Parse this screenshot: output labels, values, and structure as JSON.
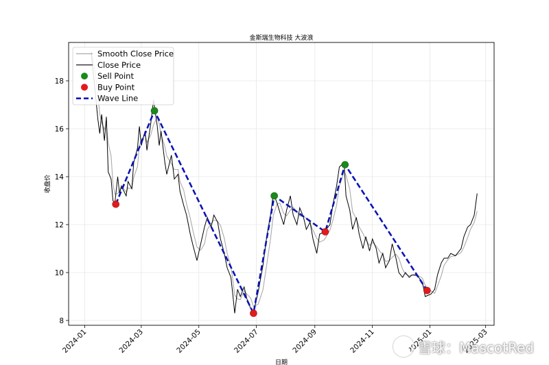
{
  "chart_data": {
    "type": "line",
    "title": "金斯瑞生物科技  大波浪",
    "xlabel": "日期",
    "ylabel": "收盘价",
    "ylim": [
      7.8,
      19.6
    ],
    "xlim": [
      "2023-12-15",
      "2025-03-10"
    ],
    "x_ticks": [
      "2024-01",
      "2024-03",
      "2024-05",
      "2024-07",
      "2024-09",
      "2024-11",
      "2025-01",
      "2025-03"
    ],
    "y_ticks": [
      8,
      10,
      12,
      14,
      16,
      18
    ],
    "grid": true,
    "legend": {
      "placement": "top-left",
      "entries": [
        {
          "label": "Smooth Close Price",
          "kind": "line",
          "color": "#aaaaaa"
        },
        {
          "label": "Close Price",
          "kind": "line",
          "color": "#000000"
        },
        {
          "label": "Sell Point",
          "kind": "marker",
          "color": "#1a8a1a"
        },
        {
          "label": "Buy Point",
          "kind": "marker",
          "color": "#e31a1c"
        },
        {
          "label": "Wave Line",
          "kind": "dashed",
          "color": "#0a14b4"
        }
      ]
    },
    "close_price": [
      [
        "2024-01-08",
        19.2
      ],
      [
        "2024-01-10",
        18.4
      ],
      [
        "2024-01-12",
        17.6
      ],
      [
        "2024-01-15",
        16.4
      ],
      [
        "2024-01-17",
        15.8
      ],
      [
        "2024-01-19",
        16.6
      ],
      [
        "2024-01-22",
        15.5
      ],
      [
        "2024-01-24",
        16.5
      ],
      [
        "2024-01-26",
        14.2
      ],
      [
        "2024-01-29",
        13.9
      ],
      [
        "2024-01-31",
        13.0
      ],
      [
        "2024-02-02",
        12.9
      ],
      [
        "2024-02-05",
        14.0
      ],
      [
        "2024-02-07",
        13.3
      ],
      [
        "2024-02-09",
        13.6
      ],
      [
        "2024-02-14",
        13.2
      ],
      [
        "2024-02-16",
        13.8
      ],
      [
        "2024-02-20",
        13.5
      ],
      [
        "2024-02-22",
        14.6
      ],
      [
        "2024-02-26",
        15.2
      ],
      [
        "2024-02-28",
        16.1
      ],
      [
        "2024-03-01",
        15.3
      ],
      [
        "2024-03-05",
        15.9
      ],
      [
        "2024-03-07",
        15.1
      ],
      [
        "2024-03-11",
        16.2
      ],
      [
        "2024-03-14",
        17.2
      ],
      [
        "2024-03-18",
        16.1
      ],
      [
        "2024-03-20",
        15.3
      ],
      [
        "2024-03-22",
        15.9
      ],
      [
        "2024-03-26",
        14.6
      ],
      [
        "2024-03-28",
        14.1
      ],
      [
        "2024-04-02",
        14.9
      ],
      [
        "2024-04-05",
        13.9
      ],
      [
        "2024-04-09",
        14.1
      ],
      [
        "2024-04-11",
        13.4
      ],
      [
        "2024-04-15",
        12.8
      ],
      [
        "2024-04-18",
        12.4
      ],
      [
        "2024-04-22",
        11.6
      ],
      [
        "2024-04-25",
        11.1
      ],
      [
        "2024-04-29",
        10.5
      ],
      [
        "2024-05-03",
        11.2
      ],
      [
        "2024-05-07",
        11.9
      ],
      [
        "2024-05-10",
        12.3
      ],
      [
        "2024-05-14",
        11.9
      ],
      [
        "2024-05-17",
        12.4
      ],
      [
        "2024-05-21",
        12.1
      ],
      [
        "2024-05-24",
        11.4
      ],
      [
        "2024-05-28",
        10.8
      ],
      [
        "2024-05-31",
        10.2
      ],
      [
        "2024-06-04",
        9.8
      ],
      [
        "2024-06-06",
        9.1
      ],
      [
        "2024-06-08",
        8.3
      ],
      [
        "2024-06-11",
        9.3
      ],
      [
        "2024-06-14",
        9.0
      ],
      [
        "2024-06-18",
        9.4
      ],
      [
        "2024-06-21",
        8.9
      ],
      [
        "2024-06-25",
        8.5
      ],
      [
        "2024-06-28",
        8.35
      ],
      [
        "2024-07-03",
        9.2
      ],
      [
        "2024-07-08",
        10.3
      ],
      [
        "2024-07-12",
        11.5
      ],
      [
        "2024-07-16",
        12.4
      ],
      [
        "2024-07-19",
        13.3
      ],
      [
        "2024-07-23",
        12.9
      ],
      [
        "2024-07-26",
        12.5
      ],
      [
        "2024-07-30",
        12.0
      ],
      [
        "2024-08-02",
        12.6
      ],
      [
        "2024-08-06",
        13.2
      ],
      [
        "2024-08-09",
        12.4
      ],
      [
        "2024-08-13",
        12.0
      ],
      [
        "2024-08-16",
        12.7
      ],
      [
        "2024-08-20",
        12.3
      ],
      [
        "2024-08-23",
        11.8
      ],
      [
        "2024-08-27",
        12.1
      ],
      [
        "2024-08-30",
        11.4
      ],
      [
        "2024-09-03",
        10.8
      ],
      [
        "2024-09-06",
        11.6
      ],
      [
        "2024-09-11",
        11.7
      ],
      [
        "2024-09-17",
        12.0
      ],
      [
        "2024-09-20",
        12.8
      ],
      [
        "2024-09-24",
        13.6
      ],
      [
        "2024-09-27",
        14.4
      ],
      [
        "2024-10-02",
        14.6
      ],
      [
        "2024-10-04",
        13.2
      ],
      [
        "2024-10-08",
        12.6
      ],
      [
        "2024-10-11",
        11.8
      ],
      [
        "2024-10-15",
        12.3
      ],
      [
        "2024-10-18",
        11.6
      ],
      [
        "2024-10-22",
        11.0
      ],
      [
        "2024-10-25",
        11.5
      ],
      [
        "2024-10-29",
        10.9
      ],
      [
        "2024-11-01",
        11.4
      ],
      [
        "2024-11-05",
        11.0
      ],
      [
        "2024-11-08",
        10.4
      ],
      [
        "2024-11-12",
        10.8
      ],
      [
        "2024-11-15",
        10.2
      ],
      [
        "2024-11-19",
        10.5
      ],
      [
        "2024-11-22",
        11.2
      ],
      [
        "2024-11-26",
        10.6
      ],
      [
        "2024-11-29",
        10.0
      ],
      [
        "2024-12-03",
        9.8
      ],
      [
        "2024-12-06",
        10.0
      ],
      [
        "2024-12-10",
        9.8
      ],
      [
        "2024-12-13",
        9.9
      ],
      [
        "2024-12-17",
        9.9
      ],
      [
        "2024-12-20",
        9.8
      ],
      [
        "2024-12-24",
        9.6
      ],
      [
        "2024-12-27",
        9.0
      ],
      [
        "2025-01-02",
        9.1
      ],
      [
        "2025-01-06",
        9.3
      ],
      [
        "2025-01-09",
        9.9
      ],
      [
        "2025-01-13",
        10.4
      ],
      [
        "2025-01-16",
        10.6
      ],
      [
        "2025-01-20",
        10.6
      ],
      [
        "2025-01-23",
        10.8
      ],
      [
        "2025-01-28",
        10.7
      ],
      [
        "2025-02-03",
        11.0
      ],
      [
        "2025-02-06",
        11.5
      ],
      [
        "2025-02-10",
        11.9
      ],
      [
        "2025-02-13",
        12.0
      ],
      [
        "2025-02-17",
        12.4
      ],
      [
        "2025-02-20",
        13.3
      ]
    ],
    "sell_points": [
      [
        "2024-03-15",
        16.75
      ],
      [
        "2024-07-20",
        13.2
      ],
      [
        "2024-10-03",
        14.5
      ]
    ],
    "buy_points": [
      [
        "2024-02-03",
        12.85
      ],
      [
        "2024-06-28",
        8.3
      ],
      [
        "2024-09-12",
        11.7
      ],
      [
        "2024-12-29",
        9.25
      ]
    ],
    "wave_line": [
      [
        "2024-02-03",
        12.85
      ],
      [
        "2024-03-15",
        16.75
      ],
      [
        "2024-06-28",
        8.3
      ],
      [
        "2024-07-20",
        13.2
      ],
      [
        "2024-09-12",
        11.7
      ],
      [
        "2024-10-03",
        14.5
      ],
      [
        "2024-12-29",
        9.25
      ]
    ]
  },
  "watermark": {
    "text": "雪球：MascotRed",
    "icon": "snowball-logo-icon"
  }
}
